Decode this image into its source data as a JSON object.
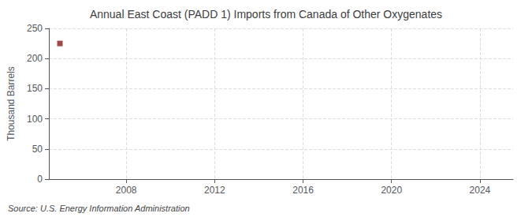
{
  "chart_data": {
    "type": "scatter",
    "title": "Annual East Coast (PADD 1) Imports from Canada of Other Oxygenates",
    "ylabel": "Thousand Barrels",
    "annotation": "Source: U.S. Energy Information Administration",
    "x": [
      2005
    ],
    "values": [
      225
    ],
    "color": "#8b1a1a",
    "marker": "square",
    "xlim": [
      2004.5,
      2025.5
    ],
    "ylim": [
      0,
      250
    ],
    "xticks": [
      2008,
      2012,
      2016,
      2020,
      2024
    ],
    "yticks": [
      0,
      50,
      100,
      150,
      200,
      250
    ],
    "grid": true
  }
}
